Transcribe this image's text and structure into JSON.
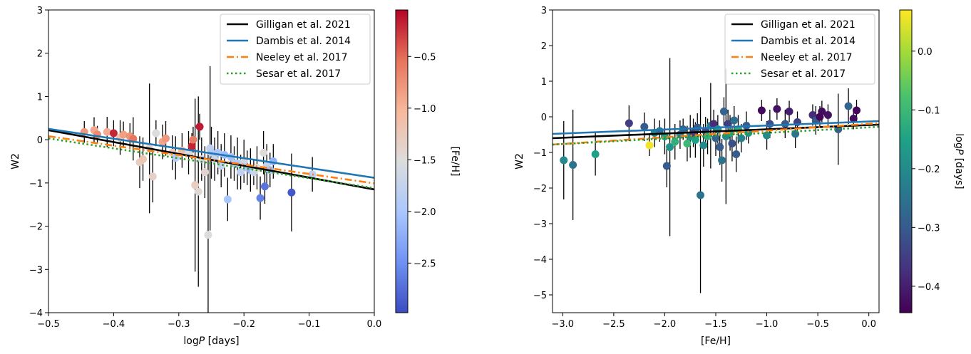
{
  "chart_data": [
    {
      "type": "scatter",
      "xlabel_text": "log",
      "xlabel_italic": "P",
      "xlabel_unit": " [days]",
      "ylabel": "W2",
      "xlim": [
        -0.5,
        0.0
      ],
      "ylim": [
        -4,
        3
      ],
      "xticks": [
        -0.5,
        -0.4,
        -0.3,
        -0.2,
        -0.1,
        0.0
      ],
      "xtick_labels": [
        "−0.5",
        "−0.4",
        "−0.3",
        "−0.2",
        "−0.1",
        "0.0"
      ],
      "yticks": [
        -4,
        -3,
        -2,
        -1,
        0,
        1,
        2,
        3
      ],
      "ytick_labels": [
        "−4",
        "−3",
        "−2",
        "−1",
        "0",
        "1",
        "2",
        "3"
      ],
      "legend_position": "top-right",
      "colorbar": {
        "label": "[Fe/H]",
        "range": [
          -2.98,
          -0.05
        ],
        "colormap": [
          "#3b4cc0",
          "#6f92f3",
          "#aac7fd",
          "#dcdddd",
          "#f7b89c",
          "#e7745b",
          "#b40426"
        ],
        "ticks": [
          -2.5,
          -2.0,
          -1.5,
          -1.0,
          -0.5
        ],
        "tick_labels": [
          "−2.5",
          "−2.0",
          "−1.5",
          "−1.0",
          "−0.5"
        ]
      },
      "lines": [
        {
          "name": "Gilligan et al. 2021",
          "color": "#000000",
          "dash": "solid",
          "x": [
            -0.5,
            0.0
          ],
          "y": [
            0.22,
            -1.15
          ]
        },
        {
          "name": "Dambis et al. 2014",
          "color": "#1f77b4",
          "dash": "solid",
          "x": [
            -0.5,
            0.0
          ],
          "y": [
            0.25,
            -0.88
          ]
        },
        {
          "name": "Neeley et al. 2017",
          "color": "#ff7f0e",
          "dash": "dashdot",
          "x": [
            -0.5,
            0.0
          ],
          "y": [
            0.08,
            -1.01
          ]
        },
        {
          "name": "Sesar et al. 2017",
          "color": "#2ca02c",
          "dash": "dotted",
          "x": [
            -0.5,
            0.0
          ],
          "y": [
            0.03,
            -1.12
          ]
        }
      ],
      "points": [
        {
          "x": -0.445,
          "y": 0.18,
          "err": 0.25,
          "c": -0.8
        },
        {
          "x": -0.43,
          "y": 0.22,
          "err": 0.3,
          "c": -0.9
        },
        {
          "x": -0.425,
          "y": 0.12,
          "err": 0.2,
          "c": -0.7
        },
        {
          "x": -0.41,
          "y": 0.18,
          "err": 0.35,
          "c": -0.95
        },
        {
          "x": -0.4,
          "y": 0.15,
          "err": 0.3,
          "c": -0.2
        },
        {
          "x": -0.39,
          "y": 0.05,
          "err": 0.4,
          "c": -1.1
        },
        {
          "x": -0.385,
          "y": 0.12,
          "err": 0.3,
          "c": -0.85
        },
        {
          "x": -0.375,
          "y": 0.08,
          "err": 0.3,
          "c": -0.75
        },
        {
          "x": -0.37,
          "y": 0.02,
          "err": 0.5,
          "c": -0.55
        },
        {
          "x": -0.36,
          "y": -0.52,
          "err": 0.6,
          "c": -1.3
        },
        {
          "x": -0.355,
          "y": -0.45,
          "err": 0.5,
          "c": -1.2
        },
        {
          "x": -0.345,
          "y": -0.2,
          "err": 1.5,
          "c": -1.4
        },
        {
          "x": -0.34,
          "y": -0.85,
          "err": 0.6,
          "c": -1.35
        },
        {
          "x": -0.335,
          "y": 0.15,
          "err": 0.3,
          "c": -1.5
        },
        {
          "x": -0.325,
          "y": -0.05,
          "err": 0.4,
          "c": -0.9
        },
        {
          "x": -0.32,
          "y": 0.03,
          "err": 0.4,
          "c": -0.8
        },
        {
          "x": -0.31,
          "y": -0.3,
          "err": 0.4,
          "c": -1.25
        },
        {
          "x": -0.305,
          "y": -0.42,
          "err": 0.5,
          "c": -1.9
        },
        {
          "x": -0.295,
          "y": -0.25,
          "err": 0.4,
          "c": -1.05
        },
        {
          "x": -0.285,
          "y": -0.3,
          "err": 0.5,
          "c": -1.55
        },
        {
          "x": -0.28,
          "y": -0.15,
          "err": 0.3,
          "c": -0.2
        },
        {
          "x": -0.278,
          "y": 0.0,
          "err": 0.3,
          "c": -0.6
        },
        {
          "x": -0.275,
          "y": -1.05,
          "err": 2.0,
          "c": -1.3
        },
        {
          "x": -0.27,
          "y": -1.2,
          "err": 2.2,
          "c": -1.45
        },
        {
          "x": -0.268,
          "y": 0.3,
          "err": 0.3,
          "c": -0.15
        },
        {
          "x": -0.265,
          "y": -0.45,
          "err": 0.5,
          "c": -1.6
        },
        {
          "x": -0.26,
          "y": -0.75,
          "err": 0.6,
          "c": -1.4
        },
        {
          "x": -0.255,
          "y": -2.2,
          "err": 2.0,
          "c": -1.5
        },
        {
          "x": -0.252,
          "y": -0.2,
          "err": 1.9,
          "c": -1.8
        },
        {
          "x": -0.25,
          "y": -0.3,
          "err": 0.6,
          "c": -1.9
        },
        {
          "x": -0.245,
          "y": -0.45,
          "err": 0.5,
          "c": -1.7
        },
        {
          "x": -0.24,
          "y": -0.3,
          "err": 0.5,
          "c": -2.0
        },
        {
          "x": -0.235,
          "y": -0.6,
          "err": 0.5,
          "c": -1.75
        },
        {
          "x": -0.23,
          "y": -0.35,
          "err": 0.5,
          "c": -2.1
        },
        {
          "x": -0.225,
          "y": -1.38,
          "err": 0.5,
          "c": -2.0
        },
        {
          "x": -0.22,
          "y": -0.4,
          "err": 0.5,
          "c": -2.05
        },
        {
          "x": -0.215,
          "y": -0.55,
          "err": 0.4,
          "c": -1.85
        },
        {
          "x": -0.21,
          "y": -0.55,
          "err": 0.6,
          "c": -1.95
        },
        {
          "x": -0.205,
          "y": -0.75,
          "err": 0.4,
          "c": -1.8
        },
        {
          "x": -0.2,
          "y": -0.5,
          "err": 0.5,
          "c": -1.65
        },
        {
          "x": -0.195,
          "y": -0.65,
          "err": 0.4,
          "c": -1.9
        },
        {
          "x": -0.19,
          "y": -0.7,
          "err": 0.5,
          "c": -2.2
        },
        {
          "x": -0.185,
          "y": -0.75,
          "err": 0.3,
          "c": -1.7
        },
        {
          "x": -0.18,
          "y": -0.65,
          "err": 0.5,
          "c": -1.45
        },
        {
          "x": -0.175,
          "y": -1.35,
          "err": 0.5,
          "c": -2.6
        },
        {
          "x": -0.17,
          "y": -0.3,
          "err": 0.5,
          "c": -1.5
        },
        {
          "x": -0.168,
          "y": -1.08,
          "err": 0.4,
          "c": -2.7
        },
        {
          "x": -0.165,
          "y": -0.6,
          "err": 0.5,
          "c": -1.75
        },
        {
          "x": -0.16,
          "y": -0.7,
          "err": 0.4,
          "c": -2.05
        },
        {
          "x": -0.155,
          "y": -0.5,
          "err": 0.4,
          "c": -2.2
        },
        {
          "x": -0.127,
          "y": -1.22,
          "err": 0.9,
          "c": -2.9
        },
        {
          "x": -0.095,
          "y": -0.8,
          "err": 0.4,
          "c": -1.8
        }
      ]
    },
    {
      "type": "scatter",
      "xlabel": "[Fe/H]",
      "ylabel": "W2",
      "xlim": [
        -3.1,
        0.1
      ],
      "ylim": [
        -5.5,
        3
      ],
      "xticks": [
        -3.0,
        -2.5,
        -2.0,
        -1.5,
        -1.0,
        -0.5,
        0.0
      ],
      "xtick_labels": [
        "−3.0",
        "−2.5",
        "−2.0",
        "−1.5",
        "−1.0",
        "−0.5",
        "0.0"
      ],
      "yticks": [
        -5,
        -4,
        -3,
        -2,
        -1,
        0,
        1,
        2,
        3
      ],
      "ytick_labels": [
        "−5",
        "−4",
        "−3",
        "−2",
        "−1",
        "0",
        "1",
        "2",
        "3"
      ],
      "legend_position": "top-right",
      "colorbar": {
        "label_text": "log",
        "label_italic": "P",
        "label_unit": " [days]",
        "range": [
          -0.445,
          0.07
        ],
        "colormap": [
          "#440154",
          "#46327e",
          "#365c8d",
          "#277f8e",
          "#1fa187",
          "#4ac16d",
          "#a0da39",
          "#fde725"
        ],
        "ticks": [
          -0.4,
          -0.3,
          -0.2,
          -0.1,
          0.0
        ],
        "tick_labels": [
          "−0.4",
          "−0.3",
          "−0.2",
          "−0.1",
          "0.0"
        ]
      },
      "lines": [
        {
          "name": "Gilligan et al. 2021",
          "color": "#000000",
          "dash": "solid",
          "x": [
            -3.1,
            0.1
          ],
          "y": [
            -0.6,
            -0.22
          ]
        },
        {
          "name": "Dambis et al. 2014",
          "color": "#1f77b4",
          "dash": "solid",
          "x": [
            -3.1,
            0.1
          ],
          "y": [
            -0.48,
            -0.12
          ]
        },
        {
          "name": "Neeley et al. 2017",
          "color": "#ff7f0e",
          "dash": "dashdot",
          "x": [
            -3.1,
            0.1
          ],
          "y": [
            -0.78,
            -0.18
          ]
        },
        {
          "name": "Sesar et al. 2017",
          "color": "#2ca02c",
          "dash": "dotted",
          "x": [
            -3.1,
            0.1
          ],
          "y": [
            -0.78,
            -0.28
          ]
        }
      ],
      "points": [
        {
          "x": -2.99,
          "y": -1.22,
          "err": 1.1,
          "c": -0.2
        },
        {
          "x": -2.9,
          "y": -1.35,
          "err": 1.55,
          "c": -0.25
        },
        {
          "x": -2.68,
          "y": -1.05,
          "err": 0.6,
          "c": -0.15
        },
        {
          "x": -2.35,
          "y": -0.18,
          "err": 0.5,
          "c": -0.35
        },
        {
          "x": -2.2,
          "y": -0.28,
          "err": 0.4,
          "c": -0.3
        },
        {
          "x": -2.15,
          "y": -0.8,
          "err": 0.3,
          "c": 0.06
        },
        {
          "x": -2.1,
          "y": -0.45,
          "err": 0.4,
          "c": -0.2
        },
        {
          "x": -2.05,
          "y": -0.4,
          "err": 0.3,
          "c": -0.25
        },
        {
          "x": -2.0,
          "y": -0.55,
          "err": 0.5,
          "c": -0.15
        },
        {
          "x": -1.98,
          "y": -1.38,
          "err": 0.6,
          "c": -0.3
        },
        {
          "x": -1.95,
          "y": -0.85,
          "err": 2.5,
          "c": -0.18
        },
        {
          "x": -1.9,
          "y": -0.7,
          "err": 0.5,
          "c": -0.12
        },
        {
          "x": -1.85,
          "y": -0.5,
          "err": 0.4,
          "c": -0.22
        },
        {
          "x": -1.82,
          "y": -0.35,
          "err": 0.3,
          "c": -0.28
        },
        {
          "x": -1.78,
          "y": -0.75,
          "err": 0.5,
          "c": -0.1
        },
        {
          "x": -1.75,
          "y": -0.55,
          "err": 0.6,
          "c": -0.2
        },
        {
          "x": -1.72,
          "y": -0.45,
          "err": 0.4,
          "c": -0.35
        },
        {
          "x": -1.7,
          "y": -0.65,
          "err": 0.5,
          "c": -0.15
        },
        {
          "x": -1.68,
          "y": -0.3,
          "err": 0.4,
          "c": -0.3
        },
        {
          "x": -1.65,
          "y": -2.2,
          "err": 2.75,
          "c": -0.25
        },
        {
          "x": -1.62,
          "y": -0.8,
          "err": 0.6,
          "c": -0.2
        },
        {
          "x": -1.6,
          "y": -0.4,
          "err": 0.4,
          "c": -0.32
        },
        {
          "x": -1.58,
          "y": -0.55,
          "err": 0.5,
          "c": -0.12
        },
        {
          "x": -1.55,
          "y": -0.25,
          "err": 1.2,
          "c": -0.22
        },
        {
          "x": -1.52,
          "y": -0.2,
          "err": 0.4,
          "c": -0.38
        },
        {
          "x": -1.5,
          "y": -0.6,
          "err": 0.5,
          "c": -0.28
        },
        {
          "x": -1.48,
          "y": -0.35,
          "err": 0.4,
          "c": -0.18
        },
        {
          "x": -1.46,
          "y": -0.85,
          "err": 0.5,
          "c": -0.3
        },
        {
          "x": -1.44,
          "y": -1.22,
          "err": 0.6,
          "c": -0.25
        },
        {
          "x": -1.42,
          "y": 0.15,
          "err": 0.4,
          "c": -0.28
        },
        {
          "x": -1.4,
          "y": -0.55,
          "err": 1.9,
          "c": -0.2
        },
        {
          "x": -1.38,
          "y": -0.2,
          "err": 0.4,
          "c": -0.35
        },
        {
          "x": -1.36,
          "y": -0.45,
          "err": 0.5,
          "c": -0.15
        },
        {
          "x": -1.34,
          "y": -0.75,
          "err": 0.5,
          "c": -0.32
        },
        {
          "x": -1.32,
          "y": -0.1,
          "err": 0.4,
          "c": -0.26
        },
        {
          "x": -1.3,
          "y": -1.05,
          "err": 0.5,
          "c": -0.3
        },
        {
          "x": -1.28,
          "y": -0.35,
          "err": 0.4,
          "c": -0.12
        },
        {
          "x": -1.25,
          "y": -0.6,
          "err": 0.4,
          "c": -0.22
        },
        {
          "x": -1.2,
          "y": -0.25,
          "err": 0.4,
          "c": -0.3
        },
        {
          "x": -1.18,
          "y": -0.45,
          "err": 0.3,
          "c": -0.18
        },
        {
          "x": -1.05,
          "y": 0.18,
          "err": 0.3,
          "c": -0.43
        },
        {
          "x": -1.0,
          "y": -0.52,
          "err": 0.4,
          "c": -0.2
        },
        {
          "x": -0.97,
          "y": -0.2,
          "err": 0.4,
          "c": -0.32
        },
        {
          "x": -0.9,
          "y": 0.22,
          "err": 0.3,
          "c": -0.42
        },
        {
          "x": -0.82,
          "y": -0.2,
          "err": 0.4,
          "c": -0.3
        },
        {
          "x": -0.78,
          "y": 0.15,
          "err": 0.3,
          "c": -0.4
        },
        {
          "x": -0.72,
          "y": -0.48,
          "err": 0.4,
          "c": -0.25
        },
        {
          "x": -0.7,
          "y": -0.15,
          "err": 0.3,
          "c": -0.35
        },
        {
          "x": -0.55,
          "y": 0.05,
          "err": 0.3,
          "c": -0.38
        },
        {
          "x": -0.52,
          "y": -0.1,
          "err": 0.4,
          "c": -0.3
        },
        {
          "x": -0.48,
          "y": 0.0,
          "err": 0.3,
          "c": -0.44
        },
        {
          "x": -0.46,
          "y": 0.15,
          "err": 0.3,
          "c": -0.43
        },
        {
          "x": -0.4,
          "y": 0.05,
          "err": 0.3,
          "c": -0.42
        },
        {
          "x": -0.3,
          "y": -0.35,
          "err": 1.0,
          "c": -0.3
        },
        {
          "x": -0.2,
          "y": 0.3,
          "err": 0.5,
          "c": -0.28
        },
        {
          "x": -0.15,
          "y": -0.05,
          "err": 0.3,
          "c": -0.43
        },
        {
          "x": -0.12,
          "y": 0.18,
          "err": 0.3,
          "c": -0.44
        }
      ]
    }
  ]
}
